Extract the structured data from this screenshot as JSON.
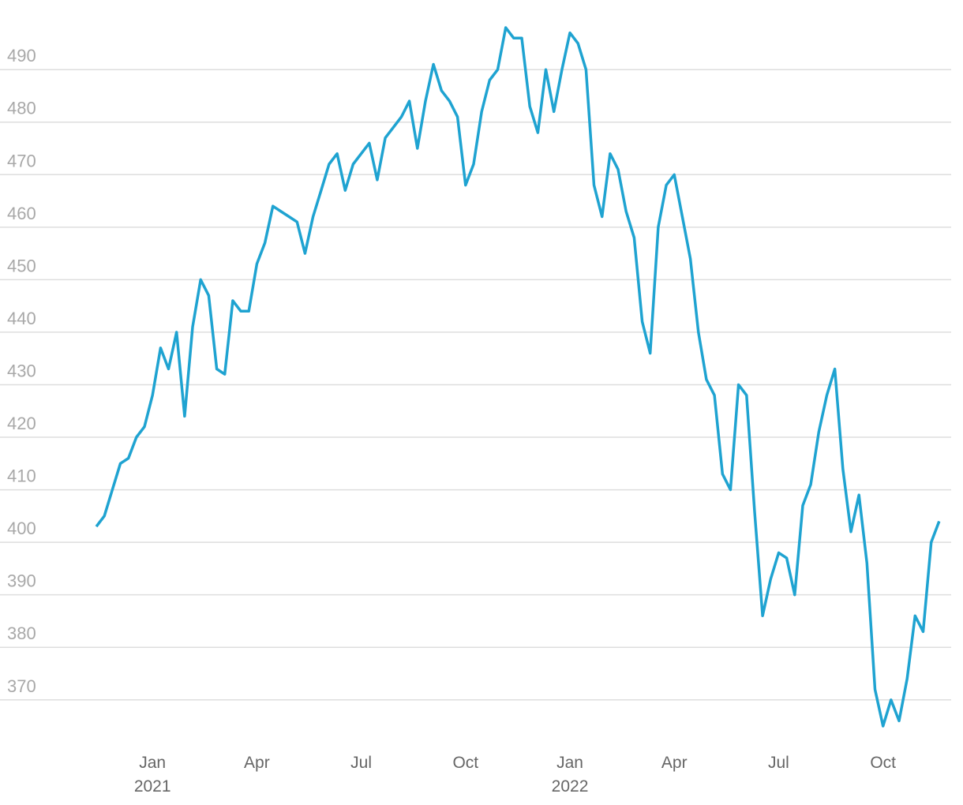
{
  "chart_data": {
    "type": "line",
    "categories": [
      null,
      null,
      null,
      null,
      null,
      null,
      null,
      "Jan 2021",
      null,
      null,
      null,
      null,
      null,
      null,
      null,
      null,
      null,
      null,
      null,
      null,
      "Apr",
      null,
      null,
      null,
      null,
      null,
      null,
      null,
      null,
      null,
      null,
      null,
      null,
      "Jul",
      null,
      null,
      null,
      null,
      null,
      null,
      null,
      null,
      null,
      null,
      null,
      null,
      "Oct",
      null,
      null,
      null,
      null,
      null,
      null,
      null,
      null,
      null,
      null,
      null,
      null,
      "Jan 2022",
      null,
      null,
      null,
      null,
      null,
      null,
      null,
      null,
      null,
      null,
      null,
      null,
      "Apr",
      null,
      null,
      null,
      null,
      null,
      null,
      null,
      null,
      null,
      null,
      null,
      null,
      "Jul",
      null,
      null,
      null,
      null,
      null,
      null,
      null,
      null,
      null,
      null,
      null,
      null,
      "Oct",
      null,
      null,
      null,
      null,
      null,
      null,
      null
    ],
    "series": [
      {
        "color": "#1fa3d1",
        "values": [
          403,
          405,
          410,
          415,
          416,
          420,
          422,
          428,
          437,
          433,
          440,
          424,
          441,
          450,
          447,
          433,
          432,
          446,
          444,
          444,
          453,
          457,
          464,
          463,
          462,
          461,
          455,
          462,
          467,
          472,
          474,
          467,
          472,
          474,
          476,
          469,
          477,
          479,
          481,
          484,
          475,
          484,
          491,
          486,
          484,
          481,
          468,
          472,
          482,
          488,
          490,
          498,
          496,
          496,
          483,
          478,
          490,
          482,
          490,
          497,
          495,
          490,
          468,
          462,
          474,
          471,
          463,
          458,
          442,
          436,
          460,
          468,
          470,
          462,
          454,
          440,
          431,
          428,
          413,
          410,
          430,
          428,
          406,
          386,
          393,
          398,
          397,
          390,
          407,
          411,
          421,
          428,
          433,
          414,
          402,
          409,
          396,
          372,
          365,
          370,
          366,
          374,
          386,
          383,
          400,
          404
        ]
      }
    ],
    "ylim": [
      362,
      501
    ],
    "yticks": [
      370,
      380,
      390,
      400,
      410,
      420,
      430,
      440,
      450,
      460,
      470,
      480,
      490
    ],
    "grid": true
  }
}
